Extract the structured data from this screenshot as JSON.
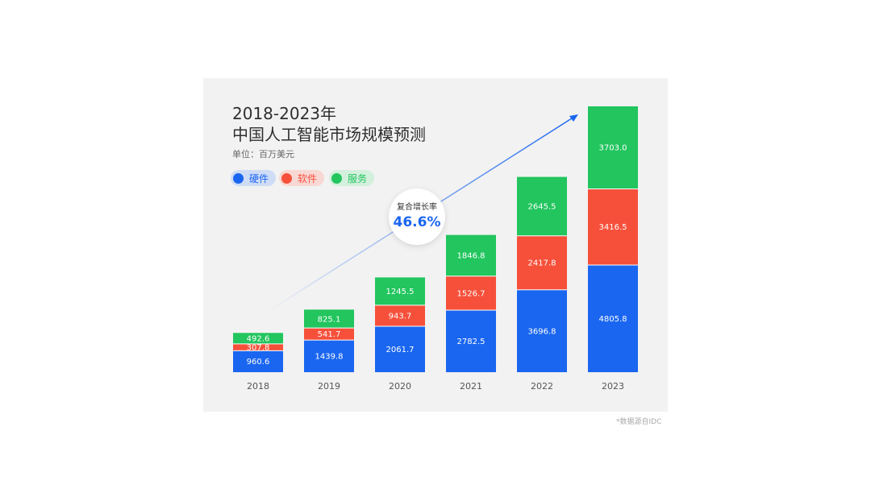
{
  "title_line1": "2018-2023年",
  "title_line2": "中国人工智能市场规模预测",
  "unit": "单位：百万美元",
  "cagr": {
    "label": "复合增长率",
    "value": "46.6%"
  },
  "source": "*数据源自IDC",
  "legend": [
    {
      "name": "硬件",
      "color": "#1a66f0",
      "bg": "#cfdcf6"
    },
    {
      "name": "软件",
      "color": "#f6503b",
      "bg": "#f8d8d3"
    },
    {
      "name": "服务",
      "color": "#22c55e",
      "bg": "#d3f0dd"
    }
  ],
  "chart_data": {
    "type": "bar",
    "stacked": true,
    "categories": [
      "2018",
      "2019",
      "2020",
      "2021",
      "2022",
      "2023"
    ],
    "series": [
      {
        "name": "硬件",
        "color": "#1a66f0",
        "values": [
          960.6,
          1439.8,
          2061.7,
          2782.5,
          3696.8,
          4805.8
        ]
      },
      {
        "name": "软件",
        "color": "#f6503b",
        "values": [
          307.8,
          541.7,
          943.7,
          1526.7,
          2417.8,
          3416.5
        ]
      },
      {
        "name": "服务",
        "color": "#22c55e",
        "values": [
          492.6,
          825.1,
          1245.5,
          1846.8,
          2645.5,
          3703.0
        ]
      }
    ],
    "value_labels": [
      [
        "960.6",
        "1439.8",
        "2061.7",
        "2782.5",
        "3696.8",
        "4805.8"
      ],
      [
        "307.8",
        "541.7",
        "943.7",
        "1526.7",
        "2417.8",
        "3416.5"
      ],
      [
        "492.6",
        "825.1",
        "1245.5",
        "1846.8",
        "2645.5",
        "3703.0"
      ]
    ],
    "trend_arrow": true
  }
}
